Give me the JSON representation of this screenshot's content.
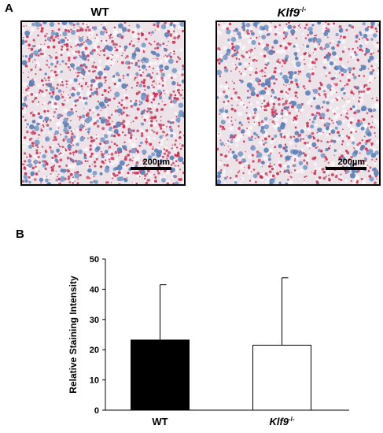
{
  "panel_labels": {
    "a": "A",
    "b": "B"
  },
  "images": [
    {
      "title": "WT",
      "title_sup": "",
      "scale_label": "200µm"
    },
    {
      "title": "Klf9",
      "title_sup": "-/-",
      "scale_label": "200µm"
    }
  ],
  "chart_data": {
    "type": "bar",
    "categories": [
      "WT",
      "Klf9-/-"
    ],
    "category_display": [
      {
        "main": "WT",
        "sup": ""
      },
      {
        "main": "Klf9",
        "sup": "-/-"
      }
    ],
    "values": [
      23.2,
      21.5
    ],
    "error_upper": [
      41.5,
      43.8
    ],
    "bar_colors": [
      "#000000",
      "#ffffff"
    ],
    "ylabel": "Relative Staining Intensity",
    "xlabel": "",
    "ylim": [
      0,
      50
    ],
    "yticks": [
      0,
      10,
      20,
      30,
      40,
      50
    ],
    "grid": false
  }
}
